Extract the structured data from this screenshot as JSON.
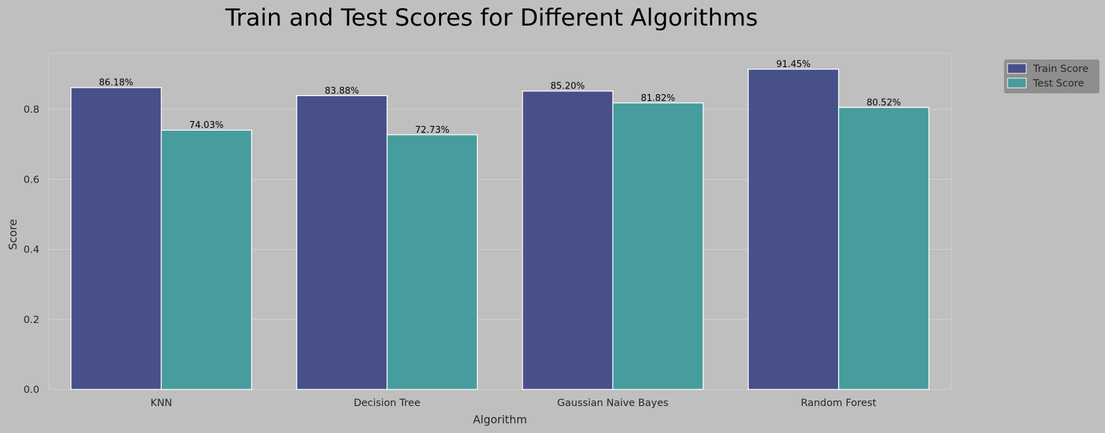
{
  "chart_data": {
    "type": "bar",
    "title": "Train and Test Scores for Different Algorithms",
    "xlabel": "Algorithm",
    "ylabel": "Score",
    "categories": [
      "KNN",
      "Decision Tree",
      "Gaussian Naive Bayes",
      "Random Forest"
    ],
    "series": [
      {
        "name": "Train Score",
        "values": [
          0.8618,
          0.8388,
          0.852,
          0.9145
        ],
        "labels": [
          "86.18%",
          "83.88%",
          "85.20%",
          "91.45%"
        ],
        "color": "#48508a"
      },
      {
        "name": "Test Score",
        "values": [
          0.7403,
          0.7273,
          0.8182,
          0.8052
        ],
        "labels": [
          "74.03%",
          "72.73%",
          "81.82%",
          "80.52%"
        ],
        "color": "#479c9e"
      }
    ],
    "ylim": [
      0,
      0.96
    ],
    "yticks": [
      "0.0",
      "0.2",
      "0.4",
      "0.6",
      "0.8"
    ],
    "grid": true,
    "legend_position": "outside-top-right",
    "colors": {
      "background": "#bfbfbf",
      "grid": "#d2d2d2",
      "legend_background": "#8e8e8e",
      "bar_edge": "#ffffff"
    }
  }
}
